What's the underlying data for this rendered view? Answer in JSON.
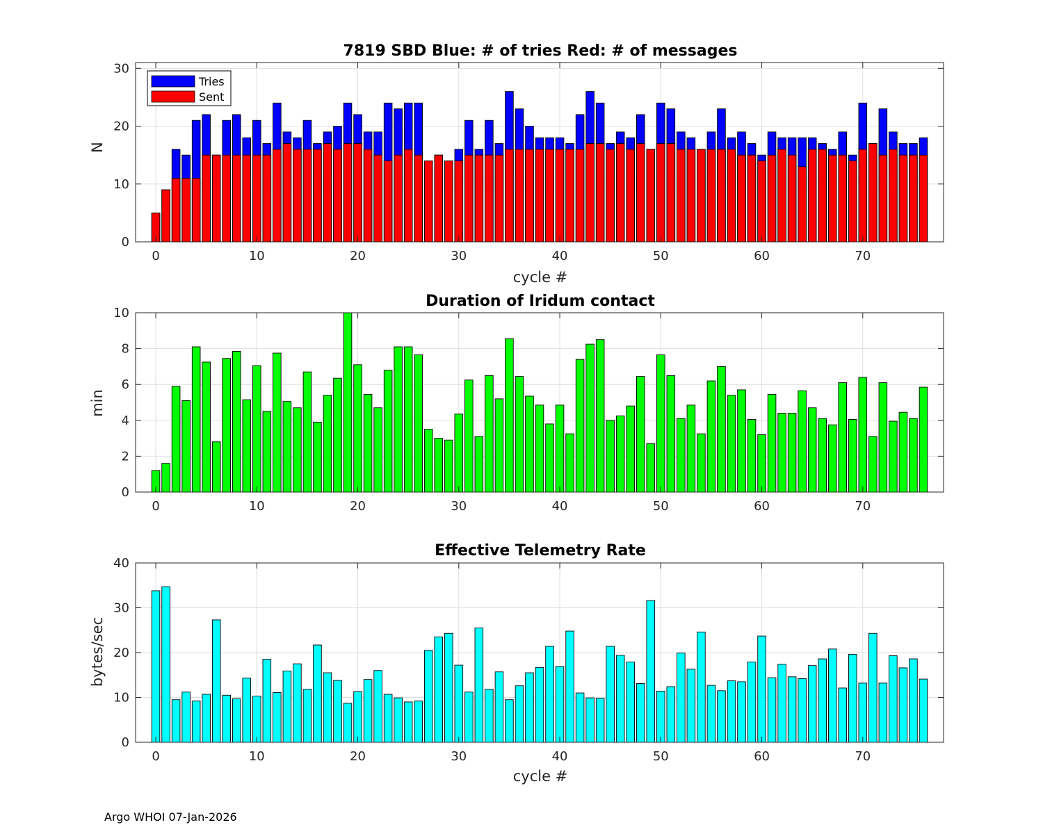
{
  "footer": "Argo WHOI 07-Jan-2026",
  "chart_data": [
    {
      "type": "bar",
      "title": "7819 SBD  Blue: # of tries   Red: # of messages",
      "xlabel": "cycle #",
      "ylabel": "N",
      "xlim": [
        -2,
        78
      ],
      "ylim": [
        0,
        31
      ],
      "xticks": [
        0,
        10,
        20,
        30,
        40,
        50,
        60,
        70
      ],
      "yticks": [
        0,
        10,
        20,
        30
      ],
      "legend": {
        "location": "top-left",
        "entries": [
          "Tries",
          "Sent"
        ]
      },
      "colors": {
        "Tries": "#0000ff",
        "Sent": "#ff0000"
      },
      "x": [
        0,
        1,
        2,
        3,
        4,
        5,
        6,
        7,
        8,
        9,
        10,
        11,
        12,
        13,
        14,
        15,
        16,
        17,
        18,
        19,
        20,
        21,
        22,
        23,
        24,
        25,
        26,
        27,
        28,
        29,
        30,
        31,
        32,
        33,
        34,
        35,
        36,
        37,
        38,
        39,
        40,
        41,
        42,
        43,
        44,
        45,
        46,
        47,
        48,
        49,
        50,
        51,
        52,
        53,
        54,
        55,
        56,
        57,
        58,
        59,
        60,
        61,
        62,
        63,
        64,
        65,
        66,
        67,
        68,
        69,
        70,
        71,
        72,
        73,
        74,
        75,
        76
      ],
      "series": [
        {
          "name": "Tries",
          "values": [
            5,
            9,
            16,
            15,
            21,
            22,
            15,
            21,
            22,
            18,
            21,
            17,
            24,
            19,
            18,
            21,
            17,
            19,
            20,
            24,
            22,
            19,
            19,
            24,
            23,
            24,
            24,
            14,
            15,
            14,
            16,
            21,
            16,
            21,
            17,
            26,
            23,
            20,
            18,
            18,
            18,
            17,
            22,
            26,
            24,
            17,
            19,
            18,
            22,
            16,
            24,
            23,
            19,
            18,
            16,
            19,
            23,
            18,
            19,
            17,
            15,
            19,
            18,
            18,
            18,
            18,
            17,
            16,
            19,
            15,
            24,
            17,
            23,
            19,
            17,
            17,
            18
          ]
        },
        {
          "name": "Sent",
          "values": [
            5,
            9,
            11,
            11,
            11,
            15,
            15,
            15,
            15,
            15,
            15,
            15,
            16,
            17,
            16,
            16,
            16,
            17,
            16,
            17,
            17,
            16,
            15,
            14,
            15,
            16,
            15,
            14,
            15,
            14,
            14,
            15,
            15,
            15,
            15,
            16,
            16,
            16,
            16,
            16,
            16,
            16,
            16,
            17,
            17,
            16,
            17,
            16,
            17,
            16,
            17,
            17,
            16,
            16,
            16,
            16,
            16,
            16,
            15,
            15,
            14,
            15,
            16,
            15,
            13,
            16,
            16,
            15,
            15,
            14,
            16,
            17,
            15,
            16,
            15,
            15,
            15
          ]
        }
      ]
    },
    {
      "type": "bar",
      "title": "Duration of Iridum contact",
      "xlabel": "",
      "ylabel": "min",
      "xlim": [
        -2,
        78
      ],
      "ylim": [
        0,
        10
      ],
      "xticks": [
        0,
        10,
        20,
        30,
        40,
        50,
        60,
        70
      ],
      "yticks": [
        0,
        2,
        4,
        6,
        8,
        10
      ],
      "color": "#00ff00",
      "x": [
        0,
        1,
        2,
        3,
        4,
        5,
        6,
        7,
        8,
        9,
        10,
        11,
        12,
        13,
        14,
        15,
        16,
        17,
        18,
        19,
        20,
        21,
        22,
        23,
        24,
        25,
        26,
        27,
        28,
        29,
        30,
        31,
        32,
        33,
        34,
        35,
        36,
        37,
        38,
        39,
        40,
        41,
        42,
        43,
        44,
        45,
        46,
        47,
        48,
        49,
        50,
        51,
        52,
        53,
        54,
        55,
        56,
        57,
        58,
        59,
        60,
        61,
        62,
        63,
        64,
        65,
        66,
        67,
        68,
        69,
        70,
        71,
        72,
        73,
        74,
        75,
        76
      ],
      "values": [
        1.2,
        1.6,
        5.9,
        5.1,
        8.1,
        7.25,
        2.8,
        7.45,
        7.85,
        5.15,
        7.05,
        4.5,
        7.75,
        5.05,
        4.7,
        6.7,
        3.9,
        5.4,
        6.35,
        10,
        7.1,
        5.45,
        4.7,
        6.8,
        8.1,
        8.1,
        7.65,
        3.5,
        3.0,
        2.9,
        4.35,
        6.25,
        3.1,
        6.5,
        5.2,
        8.55,
        6.45,
        5.35,
        4.85,
        3.8,
        4.85,
        3.25,
        7.4,
        8.25,
        8.5,
        4.0,
        4.25,
        4.8,
        6.45,
        2.7,
        7.65,
        6.5,
        4.1,
        4.85,
        3.25,
        6.2,
        7.0,
        5.4,
        5.7,
        4.05,
        3.2,
        5.45,
        4.4,
        4.4,
        5.65,
        4.7,
        4.1,
        3.75,
        6.1,
        4.05,
        6.4,
        3.1,
        6.1,
        3.95,
        4.45,
        4.1,
        5.85
      ]
    },
    {
      "type": "bar",
      "title": "Effective Telemetry Rate",
      "xlabel": "cycle #",
      "ylabel": "bytes/sec",
      "xlim": [
        -2,
        78
      ],
      "ylim": [
        0,
        40
      ],
      "xticks": [
        0,
        10,
        20,
        30,
        40,
        50,
        60,
        70
      ],
      "yticks": [
        0,
        10,
        20,
        30,
        40
      ],
      "color": "#00ffff",
      "x": [
        0,
        1,
        2,
        3,
        4,
        5,
        6,
        7,
        8,
        9,
        10,
        11,
        12,
        13,
        14,
        15,
        16,
        17,
        18,
        19,
        20,
        21,
        22,
        23,
        24,
        25,
        26,
        27,
        28,
        29,
        30,
        31,
        32,
        33,
        34,
        35,
        36,
        37,
        38,
        39,
        40,
        41,
        42,
        43,
        44,
        45,
        46,
        47,
        48,
        49,
        50,
        51,
        52,
        53,
        54,
        55,
        56,
        57,
        58,
        59,
        60,
        61,
        62,
        63,
        64,
        65,
        66,
        67,
        68,
        69,
        70,
        71,
        72,
        73,
        74,
        75,
        76
      ],
      "values": [
        33.8,
        34.7,
        9.5,
        11.2,
        9.2,
        10.7,
        27.3,
        10.5,
        9.7,
        14.3,
        10.3,
        18.5,
        11.1,
        15.9,
        17.5,
        11.8,
        21.7,
        15.5,
        13.8,
        8.7,
        11.3,
        14.0,
        16.0,
        10.7,
        9.9,
        9.0,
        9.2,
        20.5,
        23.5,
        24.3,
        17.2,
        11.2,
        25.5,
        11.8,
        15.7,
        9.5,
        12.6,
        15.5,
        16.7,
        21.4,
        16.9,
        24.8,
        11.0,
        9.9,
        9.8,
        21.4,
        19.4,
        17.9,
        13.1,
        31.6,
        11.4,
        12.4,
        19.9,
        16.3,
        24.6,
        12.7,
        11.5,
        13.7,
        13.5,
        17.9,
        23.7,
        14.4,
        17.4,
        14.6,
        14.2,
        17.1,
        18.6,
        20.8,
        12.1,
        19.6,
        13.2,
        24.3,
        13.2,
        19.3,
        16.6,
        18.6,
        14.1
      ]
    }
  ]
}
